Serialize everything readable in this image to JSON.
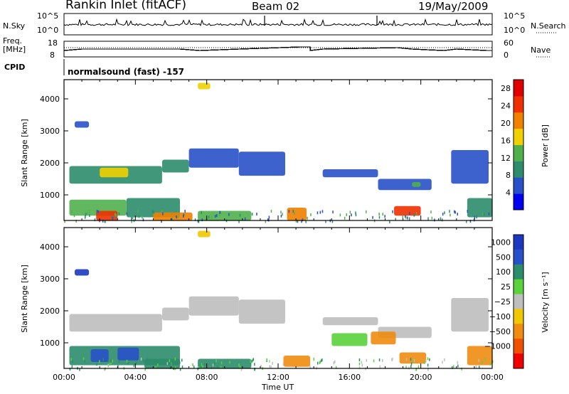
{
  "header": {
    "station": "Rankin Inlet (fitACF)",
    "beam": "Beam 02",
    "date": "19/May/2009"
  },
  "top_panels": {
    "nsky_label": "N.Sky",
    "nsky_ticks": [
      "10^5",
      "10^0"
    ],
    "nsearch_label": "N.Search",
    "nsearch_ticks": [
      "10^5",
      "10^0"
    ],
    "freq_label": "Freq.",
    "freq_unit": "[MHz]",
    "freq_ticks": [
      "18",
      "8"
    ],
    "nave_label": "Nave",
    "nave_ticks": [
      "60",
      "0"
    ],
    "cpid_label": "CPID",
    "cpid_value": "normalsound (fast) -157"
  },
  "xaxis": {
    "ticks": [
      "00:00",
      "04:00",
      "08:00",
      "12:00",
      "16:00",
      "20:00",
      "00:00"
    ],
    "label": "Time UT"
  },
  "colors": {
    "power": [
      "#0000f0",
      "#2850c8",
      "#2c8c6c",
      "#50b04c",
      "#f0d000",
      "#f08000",
      "#f03000",
      "#e00000"
    ],
    "velocity": [
      "#f00000",
      "#f05000",
      "#f08c10",
      "#f0c800",
      "#bebebe",
      "#5ad23c",
      "#2c8c6c",
      "#2850c8",
      "#1c38c0"
    ]
  },
  "chart_data": [
    {
      "type": "heatmap",
      "name": "power",
      "ylabel": "Slant Range [km]",
      "yticks": [
        1000,
        2000,
        3000,
        4000
      ],
      "ylim": [
        200,
        4600
      ],
      "xlim_hours": [
        0,
        24
      ],
      "colorbar_label": "Power [dB]",
      "colorbar_ticks": [
        4,
        8,
        12,
        16,
        20,
        24,
        28
      ],
      "colorbar_range": [
        0,
        30
      ],
      "bands": [
        {
          "t0": 0.3,
          "t1": 5.5,
          "r0": 1350,
          "r1": 1900,
          "v": 10
        },
        {
          "t0": 2.0,
          "t1": 3.6,
          "r0": 1550,
          "r1": 1850,
          "v": 16
        },
        {
          "t0": 5.5,
          "t1": 7.0,
          "r0": 1700,
          "r1": 2100,
          "v": 8
        },
        {
          "t0": 7.0,
          "t1": 9.8,
          "r0": 1850,
          "r1": 2450,
          "v": 6
        },
        {
          "t0": 9.8,
          "t1": 12.4,
          "r0": 1600,
          "r1": 2350,
          "v": 6
        },
        {
          "t0": 14.5,
          "t1": 17.6,
          "r0": 1550,
          "r1": 1800,
          "v": 7
        },
        {
          "t0": 17.6,
          "t1": 20.6,
          "r0": 1150,
          "r1": 1500,
          "v": 7
        },
        {
          "t0": 19.5,
          "t1": 20.0,
          "r0": 1250,
          "r1": 1400,
          "v": 14
        },
        {
          "t0": 21.7,
          "t1": 23.8,
          "r0": 1350,
          "r1": 2400,
          "v": 6
        },
        {
          "t0": 0.3,
          "t1": 3.5,
          "r0": 350,
          "r1": 850,
          "v": 14
        },
        {
          "t0": 1.8,
          "t1": 3.0,
          "r0": 200,
          "r1": 500,
          "v": 24
        },
        {
          "t0": 3.5,
          "t1": 6.5,
          "r0": 300,
          "r1": 900,
          "v": 10
        },
        {
          "t0": 5.0,
          "t1": 7.2,
          "r0": 200,
          "r1": 450,
          "v": 22
        },
        {
          "t0": 7.5,
          "t1": 10.5,
          "r0": 200,
          "r1": 500,
          "v": 12
        },
        {
          "t0": 12.5,
          "t1": 13.6,
          "r0": 200,
          "r1": 600,
          "v": 20
        },
        {
          "t0": 18.5,
          "t1": 20.0,
          "r0": 350,
          "r1": 650,
          "v": 26
        },
        {
          "t0": 22.6,
          "t1": 24.0,
          "r0": 300,
          "r1": 900,
          "v": 8
        },
        {
          "t0": 0.6,
          "t1": 1.4,
          "r0": 3100,
          "r1": 3300,
          "v": 6
        },
        {
          "t0": 7.5,
          "t1": 8.2,
          "r0": 4300,
          "r1": 4500,
          "v": 18
        }
      ]
    },
    {
      "type": "heatmap",
      "name": "velocity",
      "ylabel": "Slant Range [km]",
      "yticks": [
        1000,
        2000,
        3000,
        4000
      ],
      "ylim": [
        200,
        4600
      ],
      "xlim_hours": [
        0,
        24
      ],
      "colorbar_label": "Velocity [m s⁻¹]",
      "colorbar_ticks": [
        "1000",
        "500",
        "100",
        "25",
        "−25",
        "−100",
        "−500",
        "−1000"
      ],
      "bands": [
        {
          "t0": 0.3,
          "t1": 5.5,
          "r0": 1350,
          "r1": 1900,
          "c": 4
        },
        {
          "t0": 5.5,
          "t1": 7.0,
          "r0": 1700,
          "r1": 2100,
          "c": 4
        },
        {
          "t0": 7.0,
          "t1": 9.8,
          "r0": 1850,
          "r1": 2450,
          "c": 4
        },
        {
          "t0": 9.8,
          "t1": 12.4,
          "r0": 1600,
          "r1": 2350,
          "c": 4
        },
        {
          "t0": 14.5,
          "t1": 17.6,
          "r0": 1550,
          "r1": 1800,
          "c": 4
        },
        {
          "t0": 17.6,
          "t1": 20.6,
          "r0": 1150,
          "r1": 1500,
          "c": 4
        },
        {
          "t0": 21.7,
          "t1": 23.8,
          "r0": 1350,
          "r1": 2400,
          "c": 4
        },
        {
          "t0": 0.3,
          "t1": 6.5,
          "r0": 300,
          "r1": 900,
          "c": 6
        },
        {
          "t0": 1.5,
          "t1": 2.5,
          "r0": 400,
          "r1": 800,
          "c": 7
        },
        {
          "t0": 3.0,
          "t1": 4.2,
          "r0": 450,
          "r1": 850,
          "c": 7
        },
        {
          "t0": 4.5,
          "t1": 6.5,
          "r0": 200,
          "r1": 500,
          "c": 6
        },
        {
          "t0": 7.5,
          "t1": 10.5,
          "r0": 200,
          "r1": 500,
          "c": 6
        },
        {
          "t0": 12.3,
          "t1": 13.8,
          "r0": 250,
          "r1": 600,
          "c": 2
        },
        {
          "t0": 15.0,
          "t1": 17.0,
          "r0": 900,
          "r1": 1300,
          "c": 5
        },
        {
          "t0": 17.2,
          "t1": 18.6,
          "r0": 950,
          "r1": 1350,
          "c": 2
        },
        {
          "t0": 18.8,
          "t1": 20.3,
          "r0": 350,
          "r1": 700,
          "c": 2
        },
        {
          "t0": 22.6,
          "t1": 24.0,
          "r0": 300,
          "r1": 900,
          "c": 2
        },
        {
          "t0": 0.6,
          "t1": 1.4,
          "r0": 3100,
          "r1": 3300,
          "c": 8
        },
        {
          "t0": 7.5,
          "t1": 8.2,
          "r0": 4300,
          "r1": 4500,
          "c": 3
        }
      ]
    }
  ]
}
